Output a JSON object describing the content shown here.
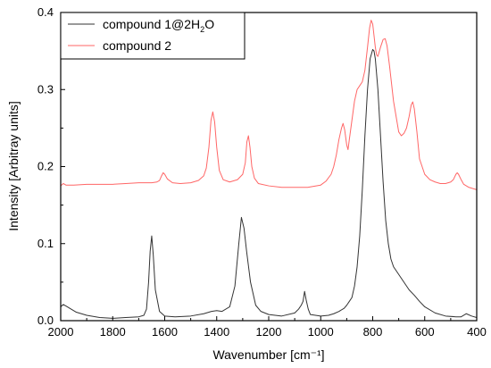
{
  "chart_data": {
    "type": "line",
    "xlabel": "Wavenumber [cm⁻¹]",
    "ylabel": "Intensity [Arbitray units]",
    "xlim": [
      2000,
      400
    ],
    "ylim": [
      0,
      0.4
    ],
    "x_ticks": [
      {
        "value": 2000,
        "label": "2000"
      },
      {
        "value": 1800,
        "label": "1800"
      },
      {
        "value": 1600,
        "label": "1600"
      },
      {
        "value": 1400,
        "label": "1400"
      },
      {
        "value": 1200,
        "label": "1200"
      },
      {
        "value": 1000,
        "label": "1000"
      },
      {
        "value": 800,
        "label": "800"
      },
      {
        "value": 600,
        "label": "600"
      },
      {
        "value": 400,
        "label": "400"
      }
    ],
    "y_ticks": [
      {
        "value": 0.0,
        "label": "0.0"
      },
      {
        "value": 0.1,
        "label": "0.1"
      },
      {
        "value": 0.2,
        "label": "0.2"
      },
      {
        "value": 0.3,
        "label": "0.3"
      },
      {
        "value": 0.4,
        "label": "0.4"
      }
    ],
    "grid": false,
    "legend": {
      "position": "top-left",
      "entries": [
        {
          "label_main": "compound 1@2H",
          "label_sub": "2",
          "label_tail": "O"
        },
        {
          "label_main": "compound 2",
          "label_sub": "",
          "label_tail": ""
        }
      ]
    },
    "series": [
      {
        "color": "#333333",
        "x": [
          2000,
          1990,
          1980,
          1960,
          1940,
          1900,
          1850,
          1800,
          1750,
          1700,
          1680,
          1670,
          1662,
          1656,
          1650,
          1644,
          1636,
          1620,
          1600,
          1560,
          1500,
          1450,
          1420,
          1400,
          1380,
          1350,
          1330,
          1315,
          1305,
          1295,
          1285,
          1270,
          1250,
          1230,
          1200,
          1150,
          1100,
          1085,
          1075,
          1068,
          1062,
          1056,
          1048,
          1040,
          1000,
          970,
          950,
          930,
          910,
          900,
          890,
          880,
          870,
          860,
          850,
          840,
          830,
          820,
          810,
          800,
          795,
          790,
          780,
          770,
          760,
          750,
          740,
          730,
          720,
          700,
          680,
          660,
          640,
          620,
          600,
          560,
          520,
          480,
          460,
          450,
          440,
          420,
          400
        ],
        "y": [
          0.018,
          0.021,
          0.019,
          0.015,
          0.011,
          0.007,
          0.004,
          0.003,
          0.004,
          0.005,
          0.007,
          0.015,
          0.05,
          0.09,
          0.11,
          0.085,
          0.04,
          0.012,
          0.006,
          0.005,
          0.006,
          0.009,
          0.012,
          0.013,
          0.012,
          0.018,
          0.045,
          0.1,
          0.134,
          0.12,
          0.09,
          0.05,
          0.02,
          0.012,
          0.008,
          0.006,
          0.01,
          0.015,
          0.02,
          0.025,
          0.038,
          0.027,
          0.015,
          0.008,
          0.006,
          0.007,
          0.009,
          0.012,
          0.016,
          0.02,
          0.025,
          0.03,
          0.045,
          0.07,
          0.11,
          0.17,
          0.24,
          0.3,
          0.34,
          0.352,
          0.35,
          0.34,
          0.3,
          0.24,
          0.18,
          0.13,
          0.1,
          0.08,
          0.07,
          0.06,
          0.05,
          0.04,
          0.033,
          0.025,
          0.018,
          0.01,
          0.006,
          0.005,
          0.005,
          0.007,
          0.009,
          0.006,
          0.004
        ]
      },
      {
        "color": "#ff6666",
        "x": [
          2000,
          1990,
          1980,
          1950,
          1900,
          1850,
          1800,
          1750,
          1700,
          1650,
          1630,
          1620,
          1612,
          1606,
          1600,
          1590,
          1570,
          1540,
          1500,
          1470,
          1450,
          1440,
          1430,
          1422,
          1415,
          1408,
          1400,
          1390,
          1375,
          1350,
          1320,
          1300,
          1290,
          1284,
          1278,
          1272,
          1265,
          1255,
          1240,
          1200,
          1150,
          1100,
          1050,
          1000,
          980,
          960,
          950,
          940,
          930,
          920,
          914,
          908,
          900,
          895,
          890,
          880,
          870,
          860,
          850,
          840,
          830,
          820,
          812,
          806,
          800,
          795,
          790,
          785,
          780,
          770,
          760,
          752,
          745,
          735,
          720,
          700,
          690,
          680,
          670,
          660,
          652,
          646,
          640,
          630,
          620,
          600,
          580,
          560,
          540,
          520,
          500,
          490,
          480,
          475,
          470,
          460,
          450,
          430,
          400
        ],
        "y": [
          0.175,
          0.178,
          0.176,
          0.176,
          0.177,
          0.177,
          0.177,
          0.178,
          0.179,
          0.179,
          0.18,
          0.182,
          0.188,
          0.192,
          0.19,
          0.184,
          0.179,
          0.178,
          0.179,
          0.182,
          0.188,
          0.198,
          0.225,
          0.26,
          0.271,
          0.258,
          0.225,
          0.195,
          0.183,
          0.18,
          0.183,
          0.19,
          0.205,
          0.232,
          0.24,
          0.225,
          0.2,
          0.185,
          0.178,
          0.175,
          0.173,
          0.173,
          0.173,
          0.176,
          0.181,
          0.19,
          0.2,
          0.215,
          0.235,
          0.25,
          0.256,
          0.248,
          0.228,
          0.222,
          0.235,
          0.26,
          0.285,
          0.3,
          0.305,
          0.31,
          0.325,
          0.355,
          0.38,
          0.39,
          0.385,
          0.37,
          0.355,
          0.345,
          0.343,
          0.355,
          0.365,
          0.366,
          0.357,
          0.33,
          0.285,
          0.245,
          0.24,
          0.243,
          0.25,
          0.265,
          0.28,
          0.284,
          0.275,
          0.245,
          0.21,
          0.19,
          0.183,
          0.18,
          0.178,
          0.178,
          0.18,
          0.183,
          0.19,
          0.192,
          0.19,
          0.183,
          0.177,
          0.173,
          0.17
        ]
      }
    ]
  }
}
